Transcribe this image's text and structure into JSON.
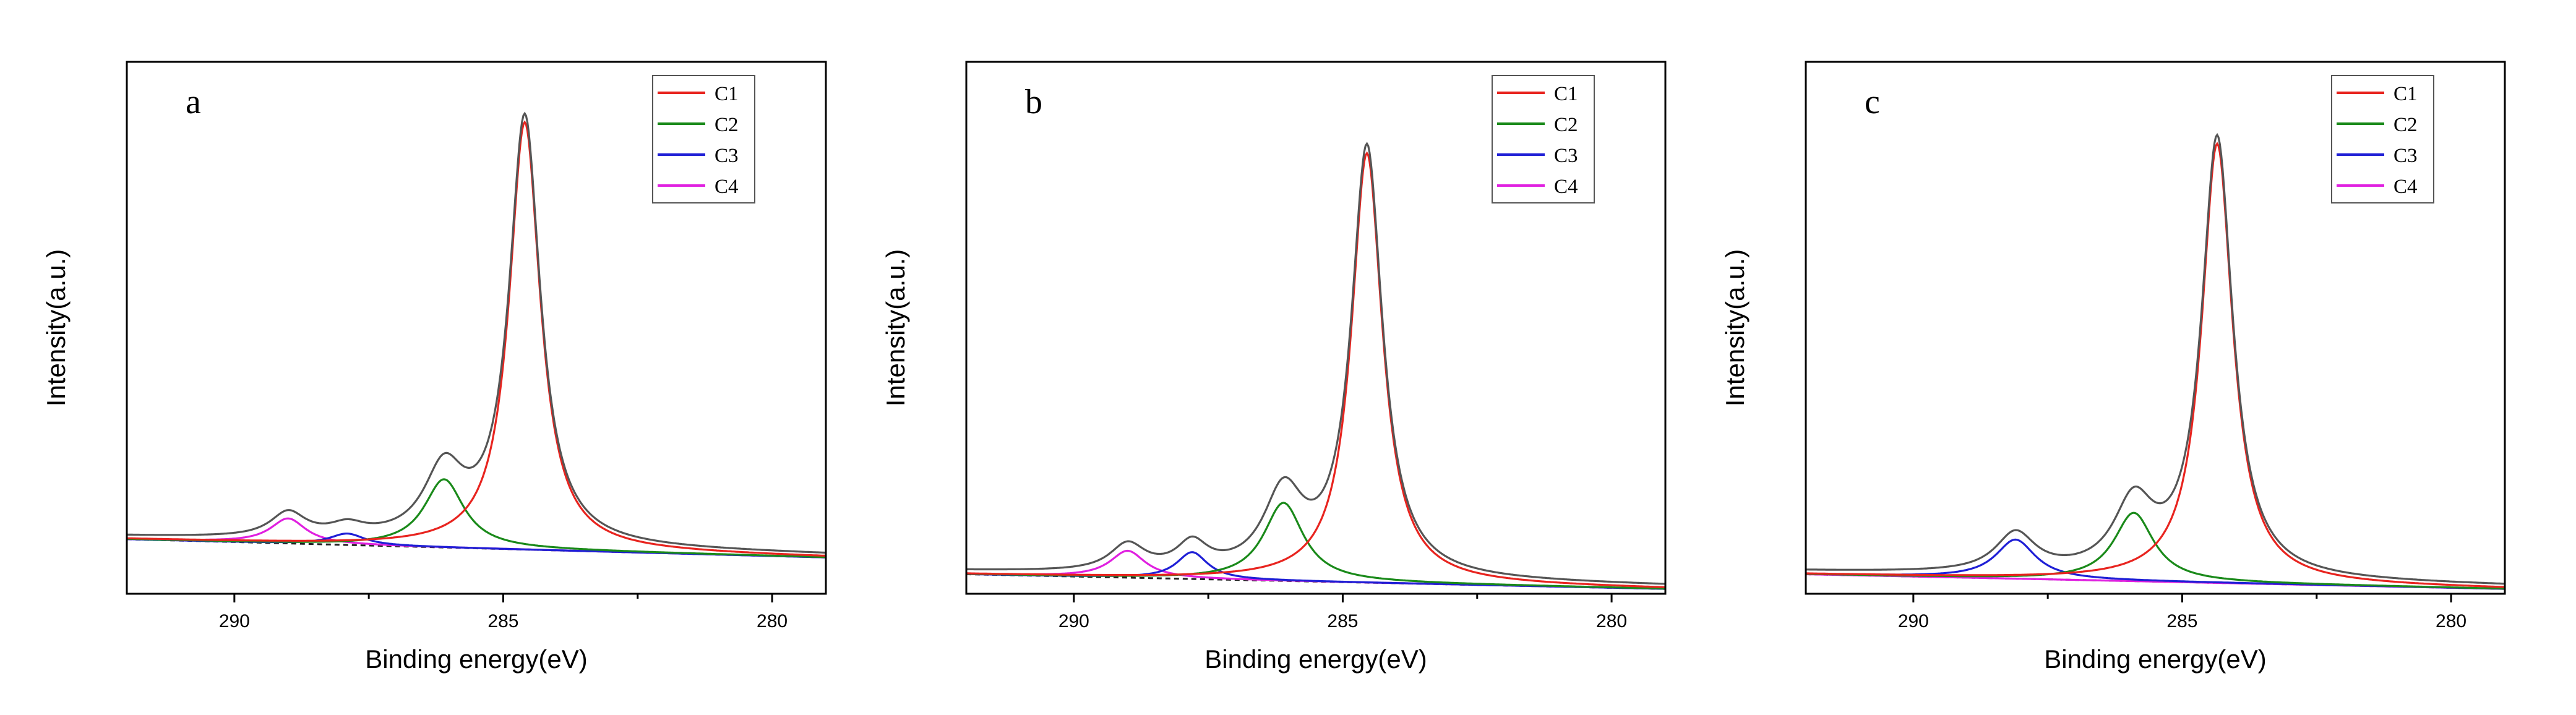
{
  "chart_data": [
    {
      "type": "line",
      "panel_label": "a",
      "xlabel": "Binding energy(eV)",
      "ylabel": "Intensity(a.u.)",
      "xlim": [
        292,
        279
      ],
      "ylim": [
        -0.12,
        1.05
      ],
      "x_ticks": [
        290,
        285,
        280
      ],
      "x_tick_labels": [
        "290",
        "285",
        "280"
      ],
      "y_tick_labels": [],
      "legend": [
        "C1",
        "C2",
        "C3",
        "C4"
      ],
      "legend_position": "top-right",
      "series": [
        {
          "name": "C1",
          "color": "#e8241f",
          "peak": {
            "center": 284.6,
            "amplitude": 0.94,
            "width": 0.35
          }
        },
        {
          "name": "C2",
          "color": "#1a8a1a",
          "peak": {
            "center": 286.1,
            "amplitude": 0.15,
            "width": 0.45
          }
        },
        {
          "name": "C3",
          "color": "#1f1fd6",
          "peak": {
            "center": 287.9,
            "amplitude": 0.025,
            "width": 0.4
          }
        },
        {
          "name": "C4",
          "color": "#e020e0",
          "peak": {
            "center": 289.0,
            "amplitude": 0.055,
            "width": 0.4
          }
        }
      ],
      "envelope": {
        "name": "Envelope",
        "color": "#555555"
      },
      "background": {
        "type": "linear",
        "at_xmin": 0.0,
        "at_xmax": -0.04
      }
    },
    {
      "type": "line",
      "panel_label": "b",
      "xlabel": "Binding energy(eV)",
      "ylabel": "Intensity(a.u.)",
      "xlim": [
        292,
        279
      ],
      "ylim": [
        -0.04,
        1.05
      ],
      "x_ticks": [
        290,
        285,
        280
      ],
      "x_tick_labels": [
        "290",
        "285",
        "280"
      ],
      "y_tick_labels": [],
      "legend": [
        "C1",
        "C2",
        "C3",
        "C4"
      ],
      "legend_position": "top-right",
      "series": [
        {
          "name": "C1",
          "color": "#e8241f",
          "peak": {
            "center": 284.55,
            "amplitude": 0.88,
            "width": 0.35
          }
        },
        {
          "name": "C2",
          "color": "#1a8a1a",
          "peak": {
            "center": 286.1,
            "amplitude": 0.16,
            "width": 0.45
          }
        },
        {
          "name": "C3",
          "color": "#1f1fd6",
          "peak": {
            "center": 287.8,
            "amplitude": 0.055,
            "width": 0.35
          }
        },
        {
          "name": "C4",
          "color": "#e020e0",
          "peak": {
            "center": 289.0,
            "amplitude": 0.055,
            "width": 0.4
          }
        }
      ],
      "envelope": {
        "name": "Envelope",
        "color": "#555555"
      },
      "background": {
        "type": "linear",
        "at_xmin": 0.0,
        "at_xmax": -0.03
      }
    },
    {
      "type": "line",
      "panel_label": "c",
      "xlabel": "Binding energy(eV)",
      "ylabel": "Intensity(a.u.)",
      "xlim": [
        292,
        279
      ],
      "ylim": [
        -0.04,
        1.05
      ],
      "x_ticks": [
        290,
        285,
        280
      ],
      "x_tick_labels": [
        "290",
        "285",
        "280"
      ],
      "y_tick_labels": [],
      "legend": [
        "C1",
        "C2",
        "C3",
        "C4"
      ],
      "legend_position": "top-right",
      "series": [
        {
          "name": "C1",
          "color": "#e8241f",
          "peak": {
            "center": 284.35,
            "amplitude": 0.9,
            "width": 0.35
          }
        },
        {
          "name": "C2",
          "color": "#1a8a1a",
          "peak": {
            "center": 285.9,
            "amplitude": 0.14,
            "width": 0.45
          }
        },
        {
          "name": "C3",
          "color": "#1f1fd6",
          "peak": {
            "center": 288.1,
            "amplitude": 0.08,
            "width": 0.45
          }
        },
        {
          "name": "C4",
          "color": "#e020e0",
          "peak": {
            "center": 289.5,
            "amplitude": 0.0,
            "width": 0.4
          }
        }
      ],
      "envelope": {
        "name": "Envelope",
        "color": "#555555"
      },
      "background": {
        "type": "linear",
        "at_xmin": 0.0,
        "at_xmax": -0.03
      }
    }
  ]
}
